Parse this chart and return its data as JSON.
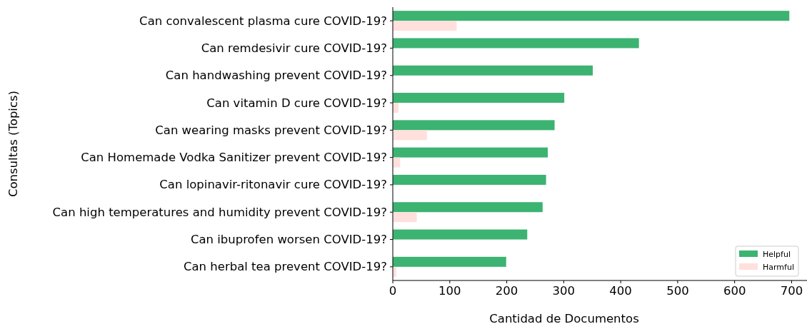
{
  "chart_data": {
    "type": "bar",
    "orientation": "horizontal",
    "xlabel": "Cantidad de Documentos",
    "ylabel": "Consultas (Topics)",
    "categories": [
      "Can convalescent plasma cure COVID-19?",
      "Can remdesivir cure COVID-19?",
      "Can handwashing prevent COVID-19?",
      "Can vitamin D cure COVID-19?",
      "Can wearing masks prevent COVID-19?",
      "Can Homemade Vodka Sanitizer prevent COVID-19?",
      "Can lopinavir-ritonavir cure COVID-19?",
      "Can high temperatures and humidity prevent COVID-19?",
      "Can ibuprofen worsen COVID-19?",
      "Can herbal tea prevent COVID-19?"
    ],
    "series": [
      {
        "name": "Helpful",
        "color": "#3cb371",
        "values": [
          696,
          432,
          351,
          301,
          284,
          272,
          269,
          263,
          236,
          199
        ]
      },
      {
        "name": "Harmful",
        "color": "#ffe0dc",
        "values": [
          112,
          0,
          0,
          10,
          60,
          13,
          null,
          42,
          0,
          6
        ]
      }
    ],
    "xlim": [
      0,
      727
    ],
    "xticks": [
      0,
      100,
      200,
      300,
      400,
      500,
      600,
      700
    ],
    "legend": "bottom right"
  }
}
